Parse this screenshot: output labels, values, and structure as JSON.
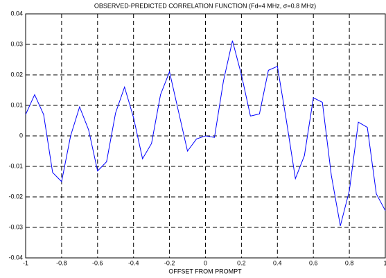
{
  "chart_data": {
    "type": "line",
    "title": "OBSERVED-PREDICTED CORRELATION FUNCTION (Fd=4 MHz, σ=0.8 MHz)",
    "x_label": "OFFSET FROM PROMPT",
    "x": [
      -1,
      -0.95,
      -0.9,
      -0.85,
      -0.8,
      -0.75,
      -0.7,
      -0.65,
      -0.6,
      -0.55,
      -0.5,
      -0.45,
      -0.4,
      -0.35,
      -0.3,
      -0.25,
      -0.2,
      -0.15,
      -0.1,
      -0.05,
      0,
      0.05,
      0.1,
      0.15,
      0.2,
      0.25,
      0.3,
      0.35,
      0.4,
      0.45,
      0.5,
      0.55,
      0.6,
      0.65,
      0.7,
      0.75,
      0.8,
      0.85,
      0.9,
      0.95,
      1
    ],
    "series": [
      {
        "color": "#0000ff",
        "values": [
          0.007,
          0.0135,
          0.007,
          -0.012,
          -0.015,
          0.0,
          0.0095,
          0.002,
          -0.0115,
          -0.0085,
          0.0075,
          0.016,
          0.006,
          -0.0075,
          -0.0025,
          0.0135,
          0.021,
          0.008,
          -0.005,
          -0.001,
          0.0,
          -0.0005,
          0.018,
          0.0312,
          0.02,
          0.0065,
          0.0072,
          0.0215,
          0.0228,
          0.005,
          -0.014,
          -0.0065,
          0.0125,
          0.011,
          -0.013,
          -0.0295,
          -0.018,
          0.0045,
          0.0028,
          -0.019,
          -0.0245
        ]
      }
    ],
    "xlim": [
      -1,
      1
    ],
    "xticks": [
      -1,
      -0.8,
      -0.6,
      -0.4,
      -0.2,
      0,
      0.2,
      0.4,
      0.6,
      0.8,
      1
    ],
    "ylim": [
      -0.04,
      0.04
    ],
    "yticks": [
      -0.04,
      -0.03,
      -0.02,
      -0.01,
      0,
      0.01,
      0.02,
      0.03,
      0.04
    ],
    "grid": true
  }
}
